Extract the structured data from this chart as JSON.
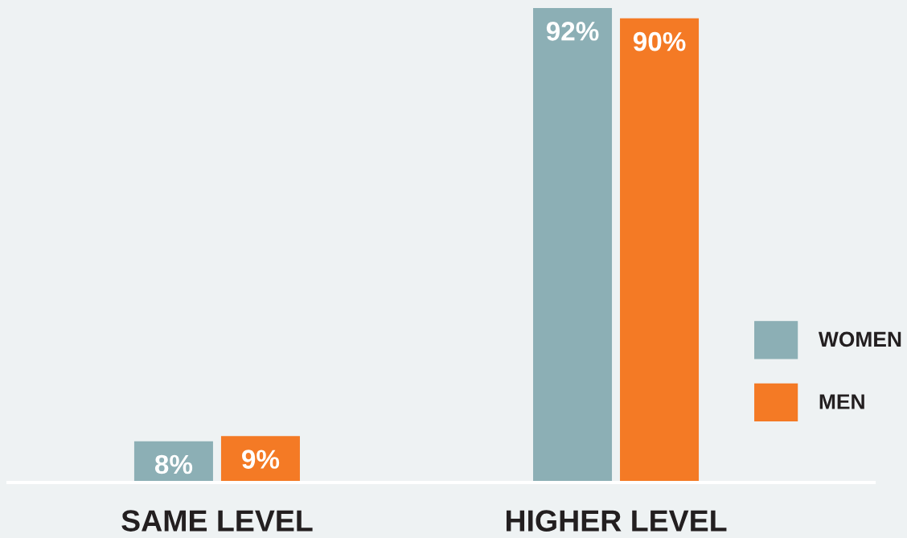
{
  "chart_data": {
    "type": "bar",
    "categories": [
      "SAME LEVEL",
      "HIGHER LEVEL"
    ],
    "series": [
      {
        "name": "WOMEN",
        "color": "#8cafb5",
        "values": [
          8,
          92
        ],
        "value_labels": [
          "8%",
          "92%"
        ]
      },
      {
        "name": "MEN",
        "color": "#f47a25",
        "values": [
          9,
          90
        ],
        "value_labels": [
          "9%",
          "90%"
        ]
      }
    ],
    "legend": "right",
    "grid": false
  }
}
